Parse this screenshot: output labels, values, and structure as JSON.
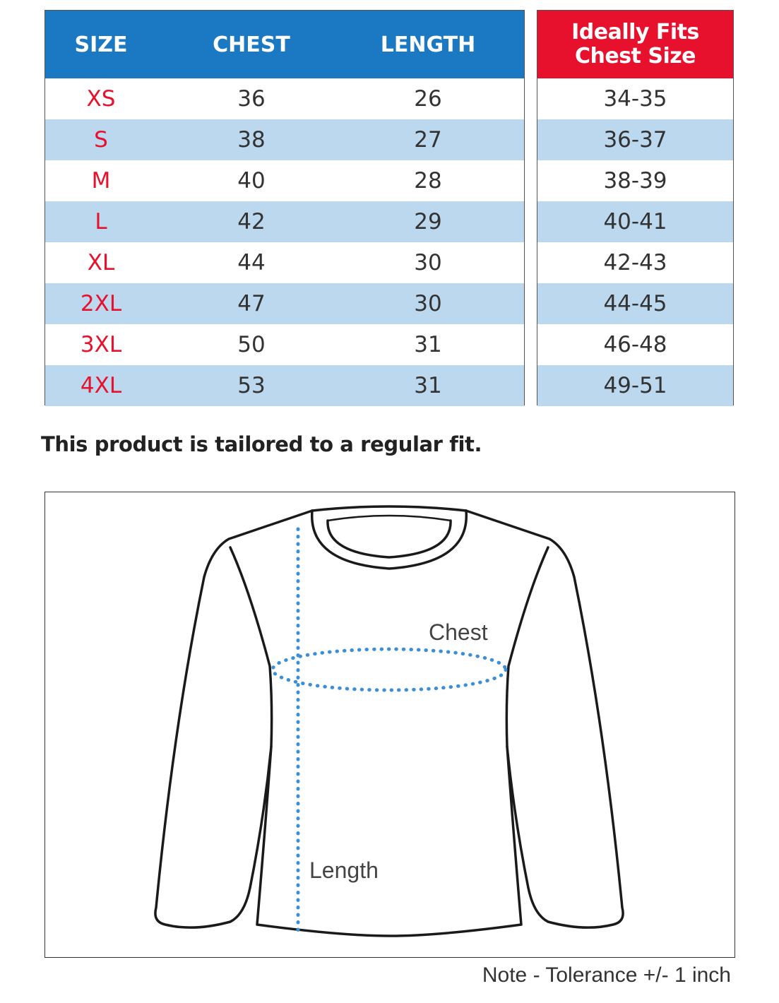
{
  "size_table": {
    "headers": [
      "SIZE",
      "CHEST",
      "LENGTH"
    ],
    "rows": [
      {
        "size": "XS",
        "chest": "36",
        "length": "26"
      },
      {
        "size": "S",
        "chest": "38",
        "length": "27"
      },
      {
        "size": "M",
        "chest": "40",
        "length": "28"
      },
      {
        "size": "L",
        "chest": "42",
        "length": "29"
      },
      {
        "size": "XL",
        "chest": "44",
        "length": "30"
      },
      {
        "size": "2XL",
        "chest": "47",
        "length": "30"
      },
      {
        "size": "3XL",
        "chest": "50",
        "length": "31"
      },
      {
        "size": "4XL",
        "chest": "53",
        "length": "31"
      }
    ]
  },
  "fit_table": {
    "header_line1": "Ideally Fits",
    "header_line2": "Chest Size",
    "values": [
      "34-35",
      "36-37",
      "38-39",
      "40-41",
      "42-43",
      "44-45",
      "46-48",
      "49-51"
    ]
  },
  "fit_note": "This product is tailored to a regular fit.",
  "diagram": {
    "chest_label": "Chest",
    "length_label": "Length"
  },
  "tolerance_note": "Note - Tolerance +/- 1 inch",
  "colors": {
    "header_blue": "#1b78c2",
    "header_red": "#e8112d",
    "row_alt": "#bcd8ee",
    "measure_dots": "#3a8fd6"
  }
}
